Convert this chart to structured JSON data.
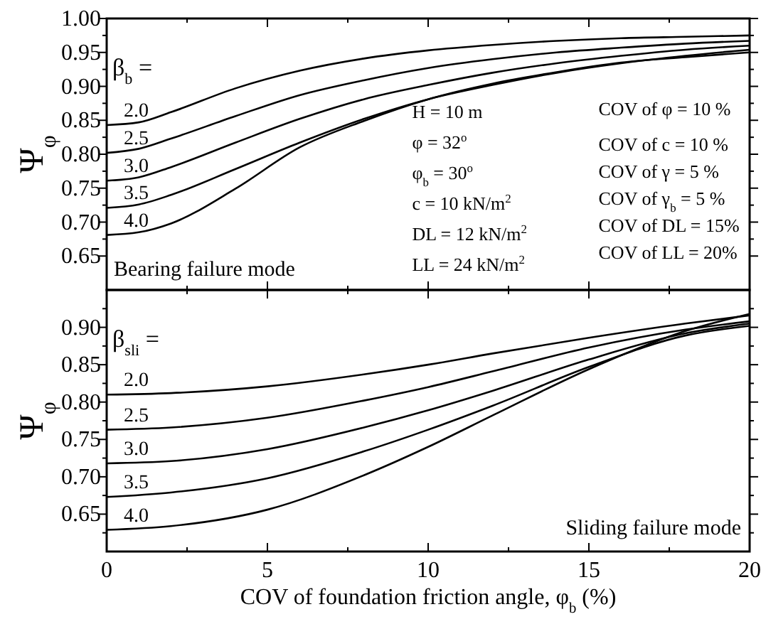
{
  "chart_data": [
    {
      "type": "line",
      "ylabel": "Ψ$_{φ}$",
      "legend_title": "β$_{b}$ =",
      "x": [
        0,
        1,
        2,
        4,
        6,
        8,
        10,
        12,
        14,
        16,
        18,
        20
      ],
      "xlim": [
        0,
        20
      ],
      "xticks": [
        0,
        {
          "value": 2.5,
          "label": null
        },
        5,
        {
          "value": 7.5,
          "label": null
        },
        10,
        {
          "value": 12.5,
          "label": null
        },
        15,
        {
          "value": 17.5,
          "label": null
        },
        20
      ],
      "ylim": [
        0.6,
        1.0
      ],
      "yticks": [
        {
          "value": 0.65,
          "label": "0.65"
        },
        {
          "value": 0.675,
          "label": null
        },
        {
          "value": 0.7,
          "label": "0.70"
        },
        {
          "value": 0.725,
          "label": null
        },
        {
          "value": 0.75,
          "label": "0.75"
        },
        {
          "value": 0.775,
          "label": null
        },
        {
          "value": 0.8,
          "label": "0.80"
        },
        {
          "value": 0.825,
          "label": null
        },
        {
          "value": 0.85,
          "label": "0.85"
        },
        {
          "value": 0.875,
          "label": null
        },
        {
          "value": 0.9,
          "label": "0.90"
        },
        {
          "value": 0.925,
          "label": null
        },
        {
          "value": 0.95,
          "label": "0.95"
        },
        {
          "value": 0.975,
          "label": null
        },
        {
          "value": 1.0,
          "label": "1.00"
        }
      ],
      "tick_labels": "y",
      "grid": false,
      "marker": "none",
      "line_style": "solid",
      "series": [
        {
          "name": "2.0",
          "color": "#000000",
          "values": [
            0.843,
            0.847,
            0.862,
            0.897,
            0.923,
            0.941,
            0.953,
            0.961,
            0.967,
            0.971,
            0.973,
            0.975
          ]
        },
        {
          "name": "2.5",
          "color": "#000000",
          "values": [
            0.802,
            0.808,
            0.823,
            0.856,
            0.887,
            0.909,
            0.927,
            0.94,
            0.95,
            0.957,
            0.963,
            0.967
          ]
        },
        {
          "name": "3.0",
          "color": "#000000",
          "values": [
            0.761,
            0.766,
            0.781,
            0.817,
            0.852,
            0.881,
            0.902,
            0.92,
            0.934,
            0.945,
            0.954,
            0.96
          ]
        },
        {
          "name": "3.5",
          "color": "#000000",
          "values": [
            0.721,
            0.726,
            0.74,
            0.778,
            0.817,
            0.852,
            0.881,
            0.902,
            0.92,
            0.934,
            0.945,
            0.954
          ]
        },
        {
          "name": "4.0",
          "color": "#000000",
          "values": [
            0.681,
            0.685,
            0.698,
            0.749,
            0.81,
            0.849,
            0.881,
            0.904,
            0.921,
            0.935,
            0.943,
            0.95
          ]
        }
      ],
      "annotations": [
        "Bearing failure mode",
        "H = 10 m",
        "φ = 32$^{o}$",
        "φ$_{b}$ = 30$^{o}$",
        "c = 10 kN/m$^{2}$",
        "DL = 12 kN/m$^{2}$",
        "LL = 24 kN/m$^{2}$",
        "COV of φ = 10 %",
        "COV of c = 10 %",
        "COV of γ = 5 %",
        "COV of γ$_{b}$ = 5 %",
        "COV of DL = 15%",
        "COV of LL = 20%"
      ]
    },
    {
      "type": "line",
      "ylabel": "Ψ$_{φ}$",
      "xlabel": "COV of foundation friction angle, φ$_{b}$ (%)",
      "legend_title": "β$_{sli}$ =",
      "x": [
        0,
        2,
        5,
        8,
        10,
        12,
        15,
        18,
        20
      ],
      "grid": false,
      "xlim": [
        0,
        20
      ],
      "xticks": [
        0,
        {
          "value": 2.5,
          "label": null
        },
        5,
        {
          "value": 7.5,
          "label": null
        },
        10,
        {
          "value": 12.5,
          "label": null
        },
        15,
        {
          "value": 17.5,
          "label": null
        },
        20
      ],
      "ylim": [
        0.6,
        0.95
      ],
      "yticks": [
        {
          "value": 0.625,
          "label": null
        },
        {
          "value": 0.65,
          "label": "0.65"
        },
        {
          "value": 0.675,
          "label": null
        },
        {
          "value": 0.7,
          "label": "0.70"
        },
        {
          "value": 0.725,
          "label": null
        },
        {
          "value": 0.75,
          "label": "0.75"
        },
        {
          "value": 0.775,
          "label": null
        },
        {
          "value": 0.8,
          "label": "0.80"
        },
        {
          "value": 0.825,
          "label": null
        },
        {
          "value": 0.85,
          "label": "0.85"
        },
        {
          "value": 0.875,
          "label": null
        },
        {
          "value": 0.9,
          "label": "0.90"
        },
        {
          "value": 0.925,
          "label": null
        }
      ],
      "marker": "none",
      "line_style": "solid",
      "series": [
        {
          "name": "2.0",
          "color": "#000000",
          "values": [
            0.81,
            0.812,
            0.821,
            0.837,
            0.85,
            0.865,
            0.886,
            0.905,
            0.916
          ]
        },
        {
          "name": "2.5",
          "color": "#000000",
          "values": [
            0.763,
            0.766,
            0.779,
            0.802,
            0.82,
            0.841,
            0.873,
            0.897,
            0.908
          ]
        },
        {
          "name": "3.0",
          "color": "#000000",
          "values": [
            0.718,
            0.721,
            0.737,
            0.766,
            0.789,
            0.815,
            0.857,
            0.892,
            0.905
          ]
        },
        {
          "name": "3.5",
          "color": "#000000",
          "values": [
            0.673,
            0.679,
            0.698,
            0.734,
            0.763,
            0.795,
            0.847,
            0.889,
            0.902
          ]
        },
        {
          "name": "4.0",
          "color": "#000000",
          "values": [
            0.629,
            0.634,
            0.656,
            0.702,
            0.74,
            0.782,
            0.844,
            0.895,
            0.918
          ]
        }
      ],
      "annotations": [
        "Sliding failure mode"
      ]
    }
  ]
}
